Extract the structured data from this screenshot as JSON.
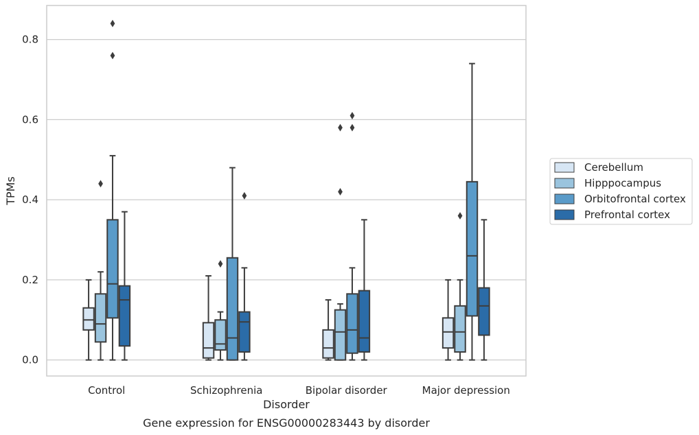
{
  "caption": "Gene expression for ENSG00000283443 by disorder",
  "chart_data": {
    "type": "box",
    "xlabel": "Disorder",
    "ylabel": "TPMs",
    "ylim": [
      -0.04,
      0.885
    ],
    "yticks": [
      "0.0",
      "0.2",
      "0.4",
      "0.6",
      "0.8"
    ],
    "ytick_values": [
      0.0,
      0.2,
      0.4,
      0.6,
      0.8
    ],
    "grid": "horizontal",
    "legend_position": "right",
    "categories": [
      "Control",
      "Schizophrenia",
      "Bipolar disorder",
      "Major depression"
    ],
    "series": [
      {
        "name": "Cerebellum",
        "color": "#d7e6f4",
        "boxes": [
          {
            "whislo": 0.0,
            "q1": 0.075,
            "med": 0.1,
            "q3": 0.13,
            "whishi": 0.2,
            "fliers": []
          },
          {
            "whislo": 0.0,
            "q1": 0.005,
            "med": 0.03,
            "q3": 0.093,
            "whishi": 0.21,
            "fliers": []
          },
          {
            "whislo": 0.0,
            "q1": 0.005,
            "med": 0.03,
            "q3": 0.075,
            "whishi": 0.15,
            "fliers": []
          },
          {
            "whislo": 0.0,
            "q1": 0.03,
            "med": 0.07,
            "q3": 0.105,
            "whishi": 0.2,
            "fliers": []
          }
        ]
      },
      {
        "name": "Hipppocampus",
        "color": "#9ac4de",
        "boxes": [
          {
            "whislo": 0.0,
            "q1": 0.045,
            "med": 0.09,
            "q3": 0.165,
            "whishi": 0.22,
            "fliers": [
              0.44
            ]
          },
          {
            "whislo": 0.0,
            "q1": 0.025,
            "med": 0.04,
            "q3": 0.1,
            "whishi": 0.12,
            "fliers": [
              0.24
            ]
          },
          {
            "whislo": 0.0,
            "q1": 0.0,
            "med": 0.07,
            "q3": 0.125,
            "whishi": 0.14,
            "fliers": [
              0.42,
              0.58
            ]
          },
          {
            "whislo": 0.0,
            "q1": 0.02,
            "med": 0.07,
            "q3": 0.135,
            "whishi": 0.2,
            "fliers": [
              0.36
            ]
          }
        ]
      },
      {
        "name": "Orbitofrontal cortex",
        "color": "#5a9bc9",
        "boxes": [
          {
            "whislo": 0.0,
            "q1": 0.105,
            "med": 0.19,
            "q3": 0.35,
            "whishi": 0.51,
            "fliers": [
              0.76,
              0.84
            ]
          },
          {
            "whislo": 0.0,
            "q1": 0.0,
            "med": 0.055,
            "q3": 0.255,
            "whishi": 0.48,
            "fliers": []
          },
          {
            "whislo": 0.0,
            "q1": 0.017,
            "med": 0.075,
            "q3": 0.165,
            "whishi": 0.23,
            "fliers": [
              0.58,
              0.61
            ]
          },
          {
            "whislo": 0.0,
            "q1": 0.11,
            "med": 0.26,
            "q3": 0.445,
            "whishi": 0.74,
            "fliers": []
          }
        ]
      },
      {
        "name": "Prefrontal cortex",
        "color": "#2b6ca8",
        "boxes": [
          {
            "whislo": 0.0,
            "q1": 0.035,
            "med": 0.15,
            "q3": 0.185,
            "whishi": 0.37,
            "fliers": []
          },
          {
            "whislo": 0.0,
            "q1": 0.02,
            "med": 0.095,
            "q3": 0.12,
            "whishi": 0.23,
            "fliers": [
              0.41
            ]
          },
          {
            "whislo": 0.0,
            "q1": 0.02,
            "med": 0.055,
            "q3": 0.173,
            "whishi": 0.35,
            "fliers": []
          },
          {
            "whislo": 0.0,
            "q1": 0.062,
            "med": 0.135,
            "q3": 0.18,
            "whishi": 0.35,
            "fliers": []
          }
        ]
      }
    ]
  }
}
